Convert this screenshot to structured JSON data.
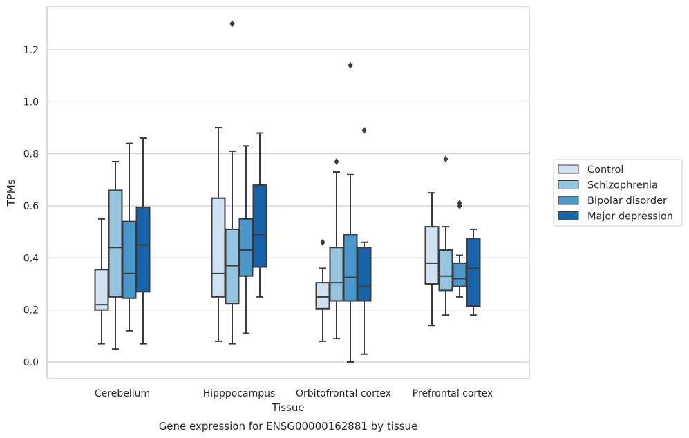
{
  "caption": "Gene expression for ENSG00000162881 by tissue",
  "chart_data": {
    "type": "box",
    "xlabel": "Tissue",
    "ylabel": "TPMs",
    "ylim": [
      -0.065,
      1.375
    ],
    "yticks": [
      0.0,
      0.2,
      0.4,
      0.6,
      0.8,
      1.0,
      1.2
    ],
    "ytick_labels": [
      "0.0",
      "0.2",
      "0.4",
      "0.6",
      "0.8",
      "1.0",
      "1.2"
    ],
    "grid": "horizontal",
    "legend_position": "right",
    "categories": [
      "Cerebellum",
      "Hipppocampus",
      "Orbitofrontal cortex",
      "Prefrontal cortex"
    ],
    "series": [
      {
        "name": "Control",
        "color": "#d0e1f2",
        "boxes": [
          {
            "whislo": 0.07,
            "q1": 0.2,
            "med": 0.22,
            "q3": 0.355,
            "whishi": 0.55,
            "fliers": []
          },
          {
            "whislo": 0.08,
            "q1": 0.25,
            "med": 0.34,
            "q3": 0.63,
            "whishi": 0.9,
            "fliers": []
          },
          {
            "whislo": 0.08,
            "q1": 0.205,
            "med": 0.25,
            "q3": 0.305,
            "whishi": 0.36,
            "fliers": [
              0.46
            ]
          },
          {
            "whislo": 0.14,
            "q1": 0.3,
            "med": 0.38,
            "q3": 0.52,
            "whishi": 0.65,
            "fliers": []
          }
        ]
      },
      {
        "name": "Schizophrenia",
        "color": "#94c4df",
        "boxes": [
          {
            "whislo": 0.05,
            "q1": 0.25,
            "med": 0.44,
            "q3": 0.66,
            "whishi": 0.77,
            "fliers": []
          },
          {
            "whislo": 0.07,
            "q1": 0.225,
            "med": 0.37,
            "q3": 0.51,
            "whishi": 0.81,
            "fliers": [
              1.3
            ]
          },
          {
            "whislo": 0.09,
            "q1": 0.235,
            "med": 0.305,
            "q3": 0.44,
            "whishi": 0.73,
            "fliers": [
              0.77
            ]
          },
          {
            "whislo": 0.18,
            "q1": 0.275,
            "med": 0.33,
            "q3": 0.43,
            "whishi": 0.52,
            "fliers": [
              0.78
            ]
          }
        ]
      },
      {
        "name": "Bipolar disorder",
        "color": "#4a98c9",
        "boxes": [
          {
            "whislo": 0.12,
            "q1": 0.245,
            "med": 0.34,
            "q3": 0.54,
            "whishi": 0.84,
            "fliers": []
          },
          {
            "whislo": 0.11,
            "q1": 0.33,
            "med": 0.43,
            "q3": 0.55,
            "whishi": 0.83,
            "fliers": []
          },
          {
            "whislo": 0.0,
            "q1": 0.235,
            "med": 0.325,
            "q3": 0.49,
            "whishi": 0.72,
            "fliers": [
              1.14
            ]
          },
          {
            "whislo": 0.25,
            "q1": 0.29,
            "med": 0.32,
            "q3": 0.38,
            "whishi": 0.41,
            "fliers": [
              0.6,
              0.61
            ]
          }
        ]
      },
      {
        "name": "Major depression",
        "color": "#1764ab",
        "boxes": [
          {
            "whislo": 0.07,
            "q1": 0.27,
            "med": 0.45,
            "q3": 0.595,
            "whishi": 0.86,
            "fliers": []
          },
          {
            "whislo": 0.25,
            "q1": 0.365,
            "med": 0.49,
            "q3": 0.68,
            "whishi": 0.88,
            "fliers": []
          },
          {
            "whislo": 0.03,
            "q1": 0.235,
            "med": 0.29,
            "q3": 0.44,
            "whishi": 0.46,
            "fliers": [
              0.89
            ]
          },
          {
            "whislo": 0.18,
            "q1": 0.215,
            "med": 0.36,
            "q3": 0.475,
            "whishi": 0.51,
            "fliers": []
          }
        ]
      }
    ]
  }
}
